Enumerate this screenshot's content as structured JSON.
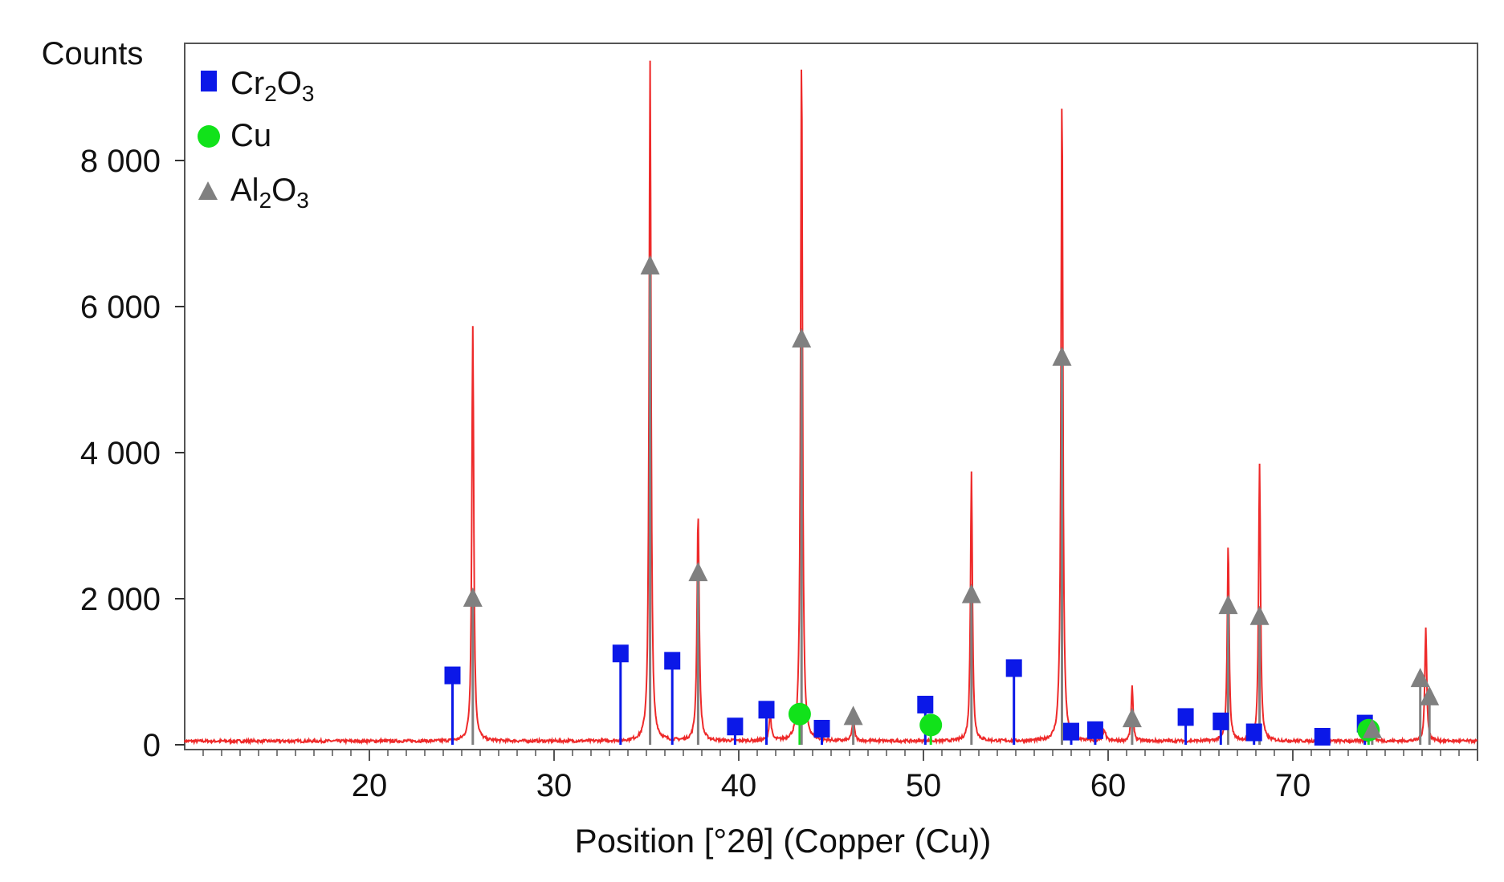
{
  "chart_data": {
    "type": "line",
    "ylabel": "Counts",
    "xlabel": "Position [°2θ] (Copper (Cu))",
    "xlim": [
      10,
      80
    ],
    "ylim": [
      0,
      9500
    ],
    "xticks": [
      20,
      30,
      40,
      50,
      60,
      70
    ],
    "xtick_labels": [
      "20",
      "30",
      "40",
      "50",
      "60",
      "70"
    ],
    "yticks": [
      0,
      2000,
      4000,
      6000,
      8000
    ],
    "ytick_labels": [
      "0",
      "2 000",
      "4 000",
      "6 000",
      "8 000"
    ],
    "grid": false,
    "legend_position": "top-left",
    "legend": [
      {
        "name": "Cr",
        "sub1": "2",
        "mid": "O",
        "sub2": "3",
        "marker": "square",
        "color": "#0b18e8"
      },
      {
        "name": "Cu",
        "sub1": "",
        "mid": "",
        "sub2": "",
        "marker": "circle",
        "color": "#11e21a"
      },
      {
        "name": "Al",
        "sub1": "2",
        "mid": "O",
        "sub2": "3",
        "marker": "triangle",
        "color": "#808080"
      }
    ],
    "pattern_color": "#ee2a2a",
    "baseline": 50,
    "peaks": [
      {
        "x": 25.6,
        "y": 5700,
        "w": 0.12
      },
      {
        "x": 35.2,
        "y": 9300,
        "w": 0.12
      },
      {
        "x": 37.8,
        "y": 3100,
        "w": 0.14
      },
      {
        "x": 41.7,
        "y": 350,
        "w": 0.15
      },
      {
        "x": 43.4,
        "y": 9450,
        "w": 0.12
      },
      {
        "x": 46.2,
        "y": 300,
        "w": 0.15
      },
      {
        "x": 52.6,
        "y": 3700,
        "w": 0.12
      },
      {
        "x": 57.5,
        "y": 8900,
        "w": 0.12
      },
      {
        "x": 59.8,
        "y": 150,
        "w": 0.15
      },
      {
        "x": 61.3,
        "y": 750,
        "w": 0.12
      },
      {
        "x": 66.5,
        "y": 2700,
        "w": 0.12
      },
      {
        "x": 68.2,
        "y": 3800,
        "w": 0.12
      },
      {
        "x": 74.3,
        "y": 250,
        "w": 0.15
      },
      {
        "x": 77.2,
        "y": 1550,
        "w": 0.12
      }
    ],
    "series": [
      {
        "name": "Cr2O3",
        "marker": "square",
        "color": "#0b18e8",
        "points": [
          {
            "x": 24.5,
            "y": 950
          },
          {
            "x": 33.6,
            "y": 1250
          },
          {
            "x": 36.4,
            "y": 1150
          },
          {
            "x": 39.8,
            "y": 250
          },
          {
            "x": 41.5,
            "y": 480
          },
          {
            "x": 44.5,
            "y": 220
          },
          {
            "x": 50.1,
            "y": 550
          },
          {
            "x": 54.9,
            "y": 1050
          },
          {
            "x": 58.0,
            "y": 180
          },
          {
            "x": 59.3,
            "y": 200
          },
          {
            "x": 64.2,
            "y": 380
          },
          {
            "x": 66.1,
            "y": 320
          },
          {
            "x": 67.9,
            "y": 170
          },
          {
            "x": 71.6,
            "y": 110
          },
          {
            "x": 73.9,
            "y": 290
          }
        ]
      },
      {
        "name": "Cu",
        "marker": "circle",
        "color": "#11e21a",
        "points": [
          {
            "x": 43.3,
            "y": 420
          },
          {
            "x": 50.4,
            "y": 270
          },
          {
            "x": 74.1,
            "y": 200
          }
        ]
      },
      {
        "name": "Al2O3",
        "marker": "triangle",
        "color": "#808080",
        "points": [
          {
            "x": 25.6,
            "y": 2000
          },
          {
            "x": 35.2,
            "y": 6550
          },
          {
            "x": 37.8,
            "y": 2350
          },
          {
            "x": 43.4,
            "y": 5550
          },
          {
            "x": 46.2,
            "y": 380
          },
          {
            "x": 52.6,
            "y": 2050
          },
          {
            "x": 57.5,
            "y": 5300
          },
          {
            "x": 61.3,
            "y": 350
          },
          {
            "x": 66.5,
            "y": 1900
          },
          {
            "x": 68.2,
            "y": 1750
          },
          {
            "x": 74.3,
            "y": 200
          },
          {
            "x": 76.9,
            "y": 900
          },
          {
            "x": 77.4,
            "y": 650
          }
        ]
      }
    ]
  }
}
